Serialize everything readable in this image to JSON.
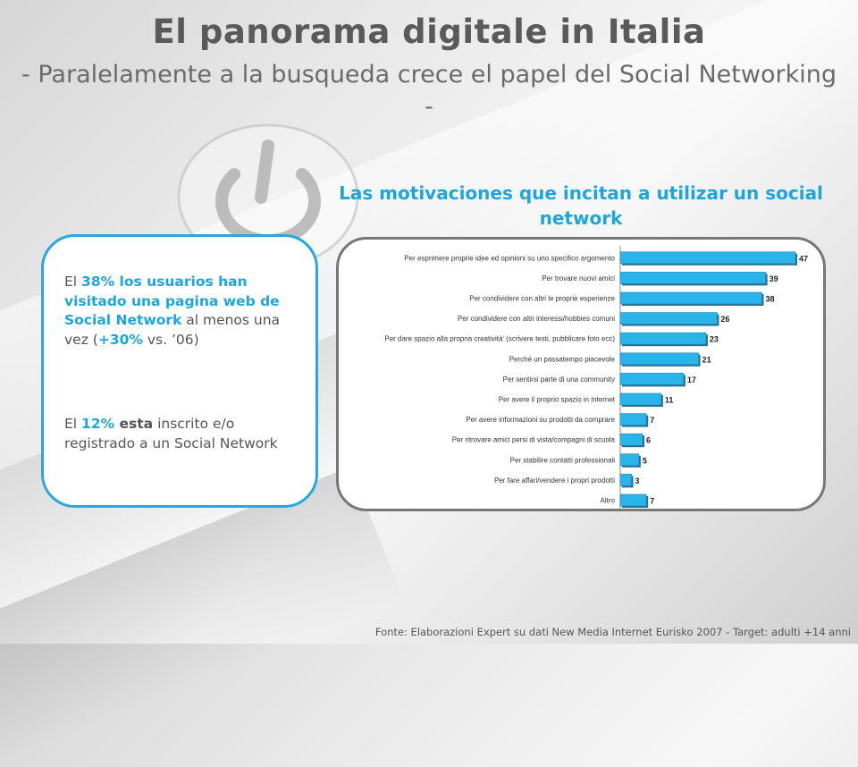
{
  "slide": {
    "title": "El panorama  digitale in Italia",
    "subtitle": "- Paralelamente  a la busqueda crece el papel del Social Networking -",
    "chart_heading": "Las motivaciones que incitan a utilizar un social network",
    "footer": "Fonte: Elaborazioni Expert su dati New Media Internet Eurisko 2007 - Target: adulti +14 anni",
    "colors": {
      "accent": "#1ea6dc",
      "bar_fill": "#29b5ea",
      "text_gray": "#555555"
    }
  },
  "stats": {
    "p1": {
      "t1": "El ",
      "pct": "38%",
      "t2": " los usuarios han visitado una pagina web de Social Network",
      "t3": " al menos una vez (",
      "delta": "+30%",
      "t4": " vs. ’06)"
    },
    "p2": {
      "t1": "El ",
      "pct": "12%",
      "t2": " esta",
      "t3": "  inscrito e/o registrado a un Social Network"
    }
  },
  "chart_data": {
    "type": "bar",
    "orientation": "horizontal",
    "categories": [
      "Per esprimere proprie idee ed opinioni su uno specifico argomento",
      "Per trovare nuovi amici",
      "Per condividere con altri le proprie esperienze",
      "Per condividere con altri interessi/hobbies comuni",
      "Per dare spazio alla propria creatività' (scrivere testi, pubblicare foto ecc)",
      "Perché un passatempo piacevole",
      "Per sentirsi parte di una community",
      "Per avere il proprio spazio in internet",
      "Per avere informazioni su prodotti da comprare",
      "Per ritrovare amici persi di vista/compagni di scuola",
      "Per stabilire contatti professionali",
      "Per fare affari/vendere i propri prodotti",
      "Altro"
    ],
    "values": [
      47,
      39,
      38,
      26,
      23,
      21,
      17,
      11,
      7,
      6,
      5,
      3,
      7
    ],
    "value_labels": [
      "47",
      "39",
      "38",
      "26",
      "23",
      "21",
      "17",
      "11",
      "7",
      "6",
      "5",
      "3",
      "7"
    ],
    "title": "",
    "xlabel": "",
    "ylabel": "",
    "xlim": [
      0,
      47
    ]
  }
}
